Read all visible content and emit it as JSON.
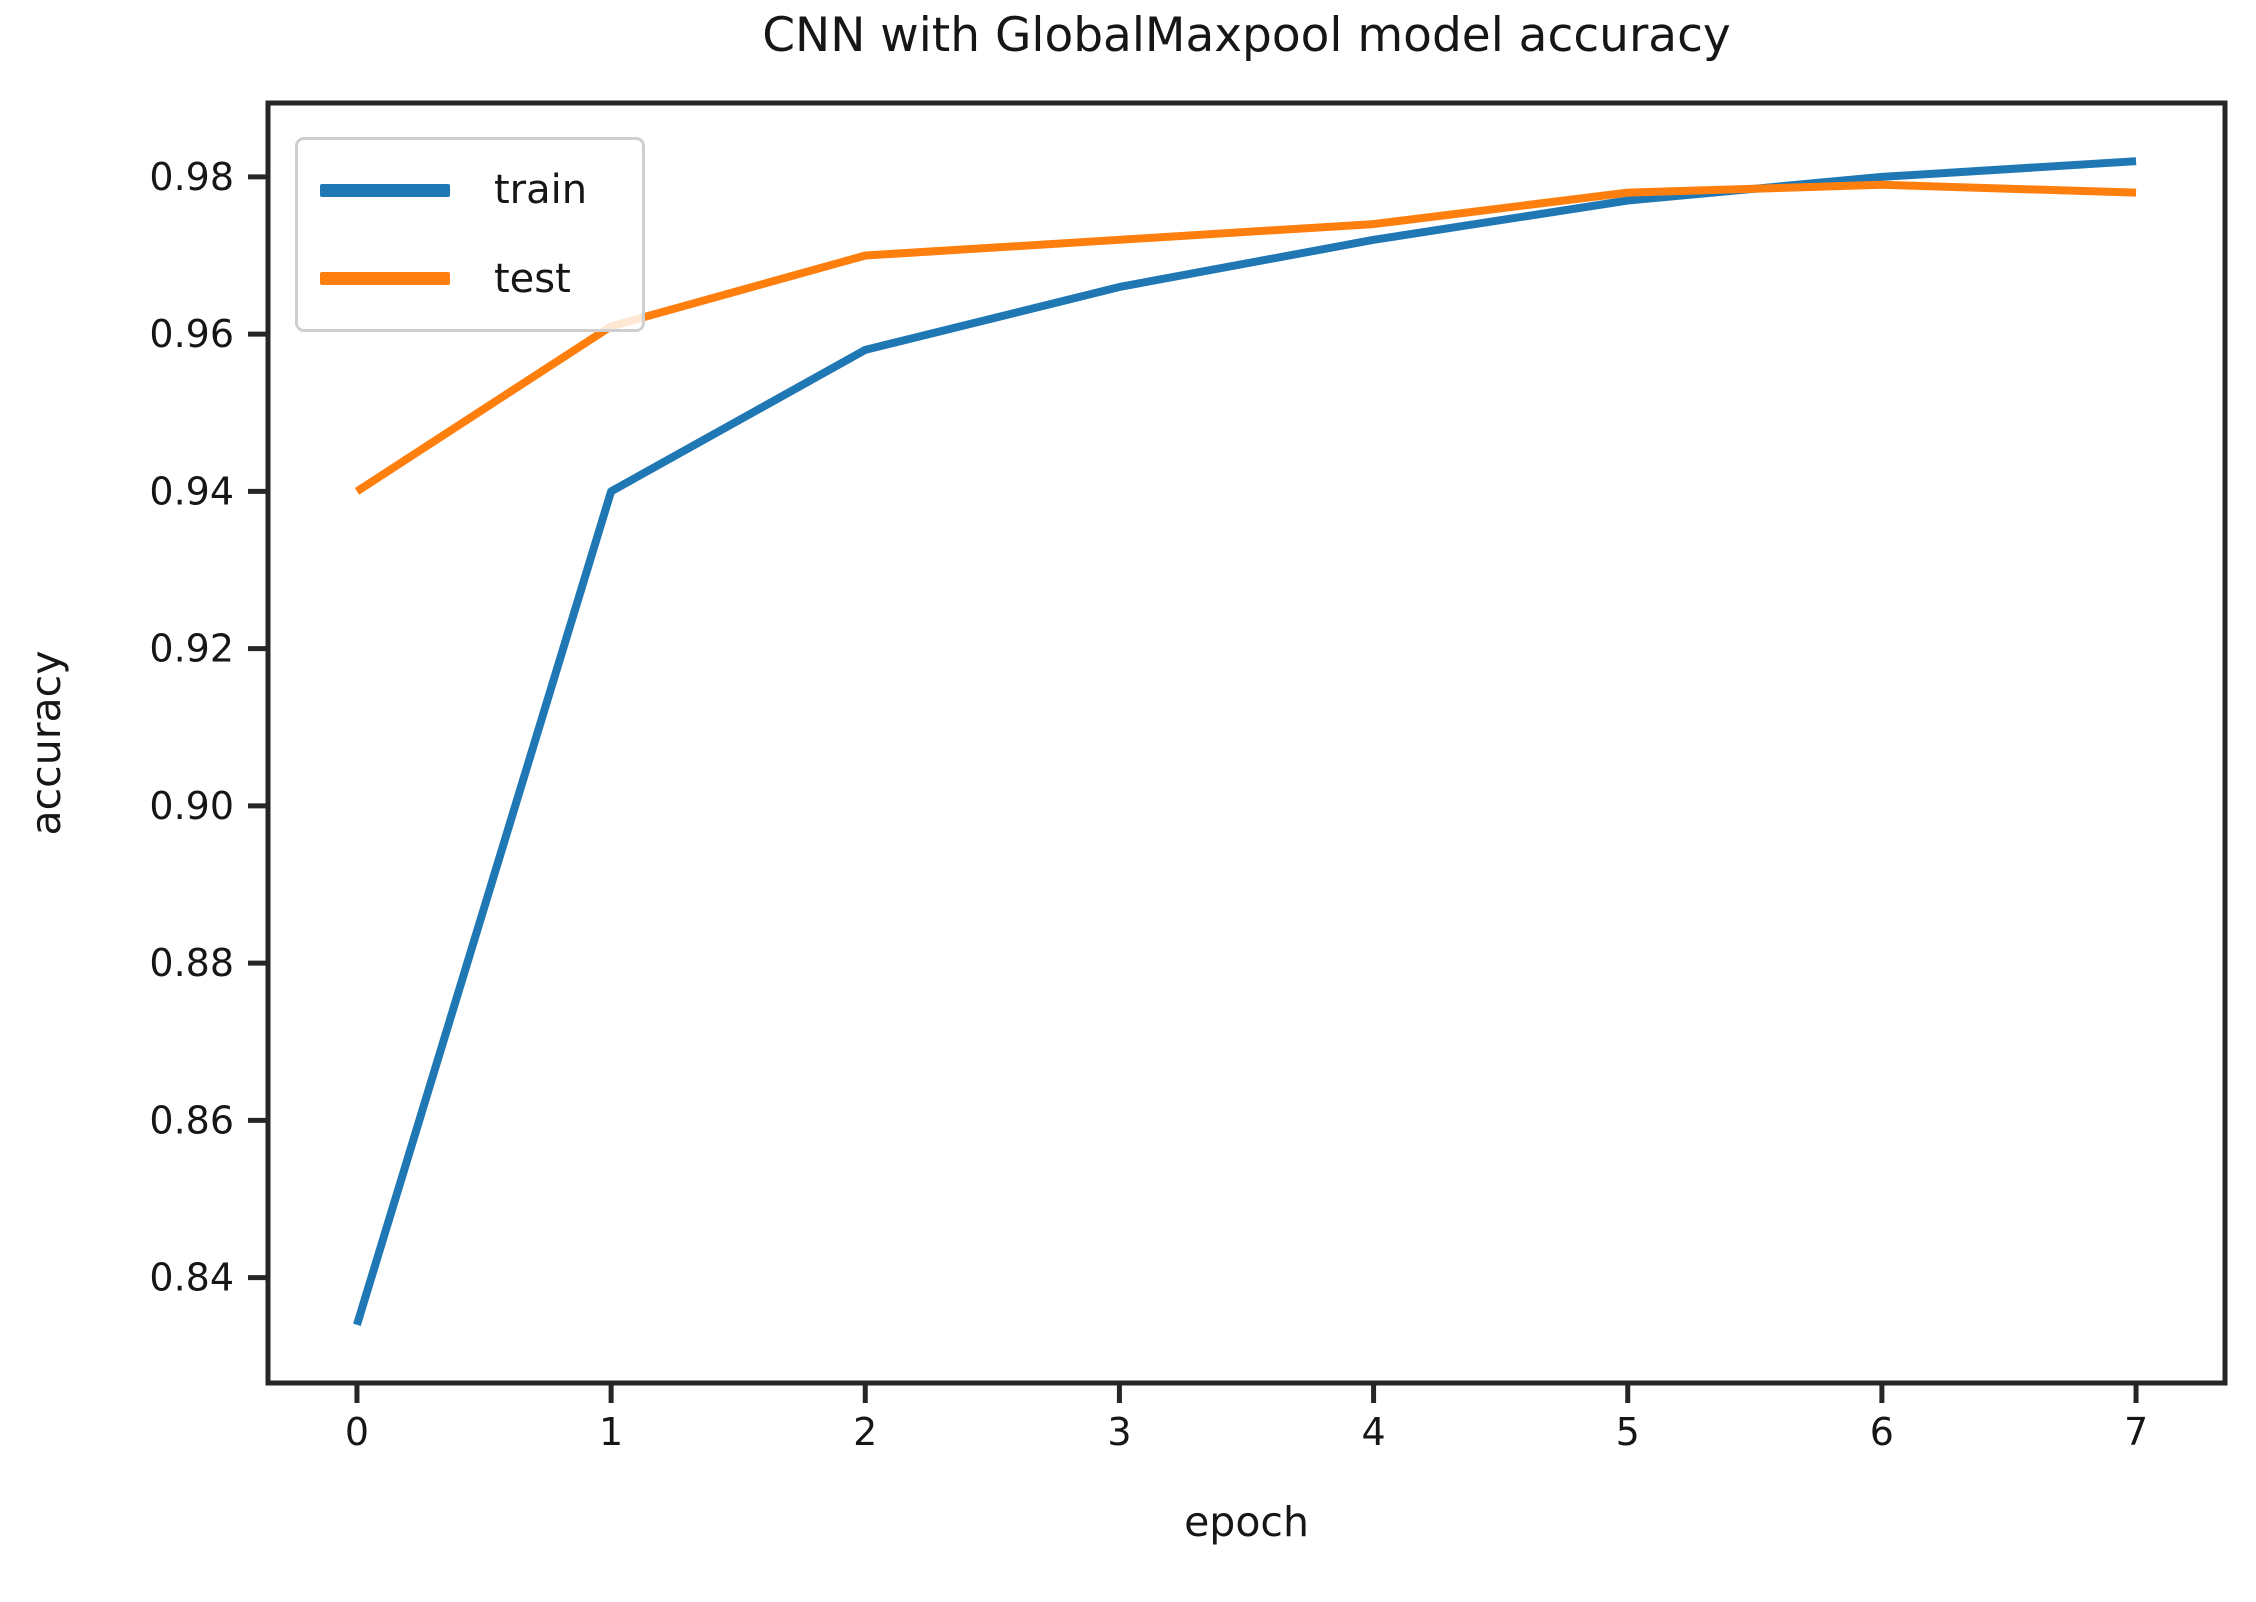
{
  "figure": {
    "background": "#ffffff",
    "text_color": "#161616",
    "spine_color": "#262626"
  },
  "chart_data": {
    "type": "line",
    "title": "CNN with GlobalMaxpool model accuracy",
    "xlabel": "epoch",
    "ylabel": "accuracy",
    "x": [
      0,
      1,
      2,
      3,
      4,
      5,
      6,
      7
    ],
    "series": [
      {
        "name": "train",
        "color": "#1f77b4",
        "values": [
          0.834,
          0.94,
          0.958,
          0.966,
          0.972,
          0.977,
          0.98,
          0.982
        ]
      },
      {
        "name": "test",
        "color": "#ff7f0e",
        "values": [
          0.94,
          0.961,
          0.97,
          0.972,
          0.974,
          0.978,
          0.979,
          0.978
        ]
      }
    ],
    "xlim": [
      -0.35,
      7.35
    ],
    "ylim": [
      0.8266,
      0.9894
    ],
    "xticks": [
      0,
      1,
      2,
      3,
      4,
      5,
      6,
      7
    ],
    "xtick_labels": [
      "0",
      "1",
      "2",
      "3",
      "4",
      "5",
      "6",
      "7"
    ],
    "yticks": [
      0.84,
      0.86,
      0.88,
      0.9,
      0.92,
      0.94,
      0.96,
      0.98
    ],
    "ytick_labels": [
      "0.84",
      "0.86",
      "0.88",
      "0.90",
      "0.92",
      "0.94",
      "0.96",
      "0.98"
    ],
    "grid": false,
    "legend": {
      "position": "upper left",
      "entries": [
        "train",
        "test"
      ]
    }
  }
}
